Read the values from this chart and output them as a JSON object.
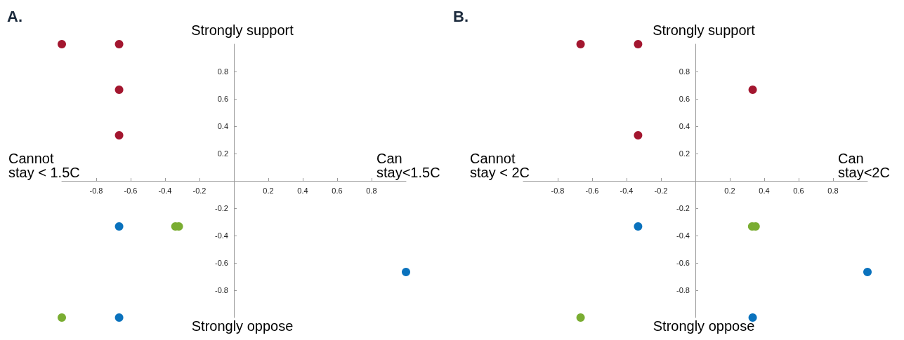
{
  "chart_data": [
    {
      "type": "scatter",
      "title": "A.",
      "annotations": [
        "Strongly support",
        "Strongly oppose",
        "Cannot\nstay < 1.5C",
        "Can\nstay<1.5C"
      ],
      "xlim": [
        -1,
        1
      ],
      "ylim": [
        -1,
        1
      ],
      "xticks": [
        -0.8,
        -0.6,
        -0.4,
        -0.2,
        0.2,
        0.4,
        0.6,
        0.8
      ],
      "yticks": [
        -0.8,
        -0.6,
        -0.4,
        -0.2,
        0.2,
        0.4,
        0.6,
        0.8
      ],
      "grid": false,
      "marker": "circle",
      "series": [
        {
          "color": "#a3162f",
          "x": [
            -1,
            -0.667,
            -0.667,
            -0.667
          ],
          "values": [
            1,
            1,
            0.667,
            0.333
          ]
        },
        {
          "color": "#0a72bd",
          "x": [
            -0.667,
            1,
            -0.667
          ],
          "values": [
            -0.333,
            -0.667,
            -1
          ]
        },
        {
          "color": "#7aad32",
          "x": [
            -1,
            -0.34,
            -0.32
          ],
          "values": [
            -1,
            -0.333,
            -0.333
          ]
        }
      ]
    },
    {
      "type": "scatter",
      "title": "B.",
      "annotations": [
        "Strongly support",
        "Strongly oppose",
        "Cannot\nstay < 2C",
        "Can\nstay<2C"
      ],
      "xlim": [
        -1,
        1
      ],
      "ylim": [
        -1,
        1
      ],
      "xticks": [
        -0.8,
        -0.6,
        -0.4,
        -0.2,
        0.2,
        0.4,
        0.6,
        0.8
      ],
      "yticks": [
        -0.8,
        -0.6,
        -0.4,
        -0.2,
        0.2,
        0.4,
        0.6,
        0.8
      ],
      "grid": false,
      "marker": "circle",
      "series": [
        {
          "color": "#a3162f",
          "x": [
            -0.667,
            -0.333,
            0.333,
            -0.333
          ],
          "values": [
            1,
            1,
            0.667,
            0.333
          ]
        },
        {
          "color": "#0a72bd",
          "x": [
            -0.333,
            1,
            0.333
          ],
          "values": [
            -0.333,
            -0.667,
            -1
          ]
        },
        {
          "color": "#7aad32",
          "x": [
            -0.667,
            0.33,
            0.35
          ],
          "values": [
            -1,
            -0.333,
            -0.333
          ]
        }
      ]
    }
  ]
}
